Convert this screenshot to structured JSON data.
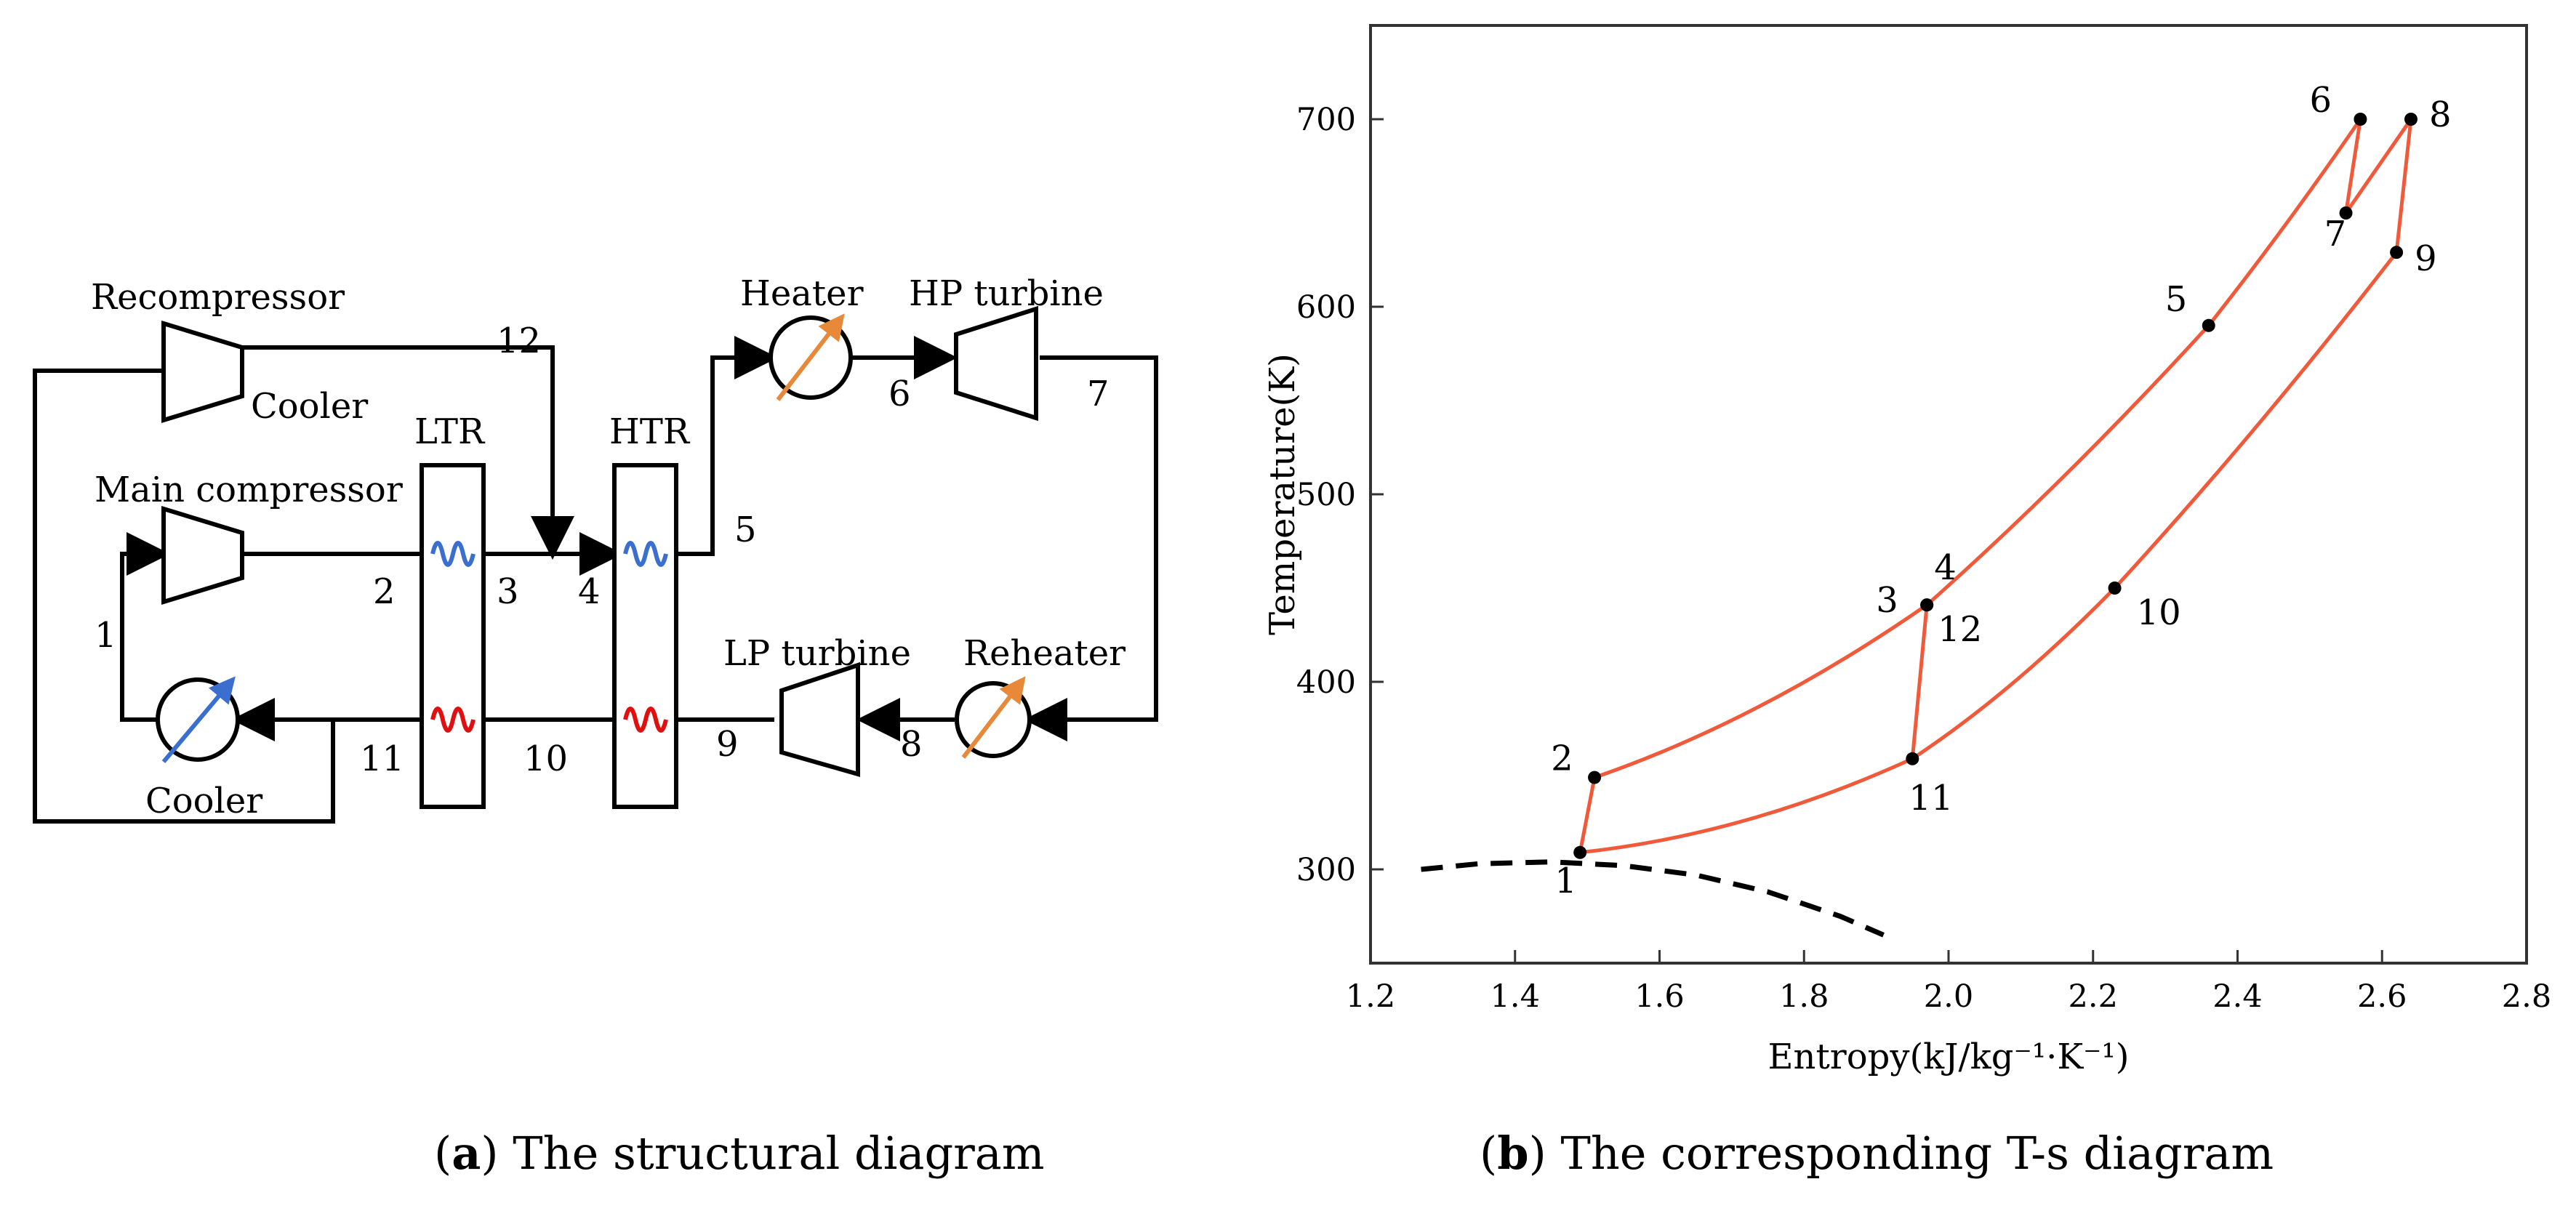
{
  "colors": {
    "cycle_line": "#F05A3A",
    "cold_coil": "#3A6FD0",
    "hot_coil": "#E01010",
    "heater_arrow": "#E8893A",
    "cooler_arrow": "#3A6FD0"
  },
  "diagram": {
    "components": {
      "recompressor": "Recompressor",
      "cooler_top": "Cooler",
      "main_compressor": "Main compressor",
      "ltr": "LTR",
      "htr": "HTR",
      "heater": "Heater",
      "hp_turbine": "HP turbine",
      "lp_turbine": "LP turbine",
      "reheater": "Reheater",
      "cooler_bottom": "Cooler"
    },
    "states": [
      "1",
      "2",
      "3",
      "4",
      "5",
      "6",
      "7",
      "8",
      "9",
      "10",
      "11",
      "12"
    ],
    "caption_bold": "a",
    "caption_text": "The structural diagram"
  },
  "chart_data": {
    "type": "line",
    "xlabel": "Entropy(kJ/kg⁻¹·K⁻¹)",
    "ylabel": "Temperature(K)",
    "xlim": [
      1.2,
      2.8
    ],
    "ylim": [
      250,
      750
    ],
    "xticks": [
      "1.2",
      "1.4",
      "1.6",
      "1.8",
      "2.0",
      "2.2",
      "2.4",
      "2.6",
      "2.8"
    ],
    "yticks": [
      "300",
      "400",
      "500",
      "600",
      "700"
    ],
    "points": [
      {
        "label": "1",
        "s": 1.49,
        "T": 309
      },
      {
        "label": "2",
        "s": 1.51,
        "T": 349
      },
      {
        "label": "3",
        "s": 1.97,
        "T": 441
      },
      {
        "label": "4",
        "s": 1.97,
        "T": 441
      },
      {
        "label": "5",
        "s": 2.36,
        "T": 590
      },
      {
        "label": "6",
        "s": 2.57,
        "T": 700
      },
      {
        "label": "7",
        "s": 2.55,
        "T": 650
      },
      {
        "label": "8",
        "s": 2.64,
        "T": 700
      },
      {
        "label": "9",
        "s": 2.62,
        "T": 629
      },
      {
        "label": "10",
        "s": 2.23,
        "T": 450
      },
      {
        "label": "11",
        "s": 1.95,
        "T": 359
      },
      {
        "label": "12",
        "s": 1.97,
        "T": 441
      }
    ],
    "saturation_dome": [
      [
        1.27,
        300
      ],
      [
        1.35,
        303
      ],
      [
        1.45,
        304
      ],
      [
        1.55,
        302
      ],
      [
        1.65,
        297
      ],
      [
        1.75,
        288
      ],
      [
        1.85,
        275
      ],
      [
        1.91,
        265
      ]
    ],
    "caption_bold": "b",
    "caption_text": "The corresponding T-s diagram"
  }
}
